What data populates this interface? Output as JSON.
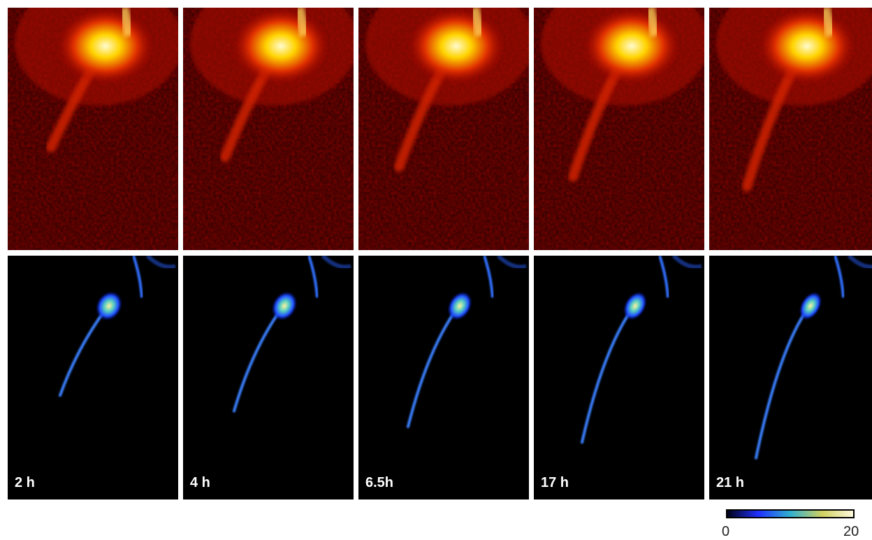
{
  "panels": [
    {
      "label": "2 h"
    },
    {
      "label": "4 h"
    },
    {
      "label": "6.5h"
    },
    {
      "label": "17 h"
    },
    {
      "label": "21 h"
    }
  ],
  "colorbar": {
    "min": "0",
    "max": "20"
  }
}
